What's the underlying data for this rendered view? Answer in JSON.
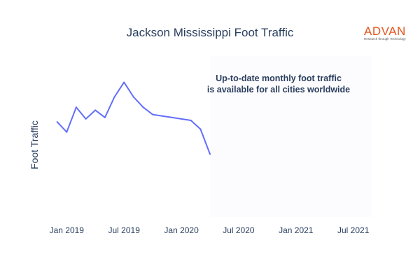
{
  "chart_data": {
    "type": "line",
    "title": "Jackson Mississippi Foot Traffic",
    "xlabel": "",
    "ylabel": "Foot Traffic",
    "x_ticks": [
      "Jan 2019",
      "Jul 2019",
      "Jan 2020",
      "Jul 2020",
      "Jan 2021",
      "Jul 2021"
    ],
    "x_range": [
      "2018-11",
      "2021-09"
    ],
    "grid": false,
    "legend": "none",
    "series": [
      {
        "color": "#636efa",
        "x": [
          "2018-12",
          "2019-01",
          "2019-02",
          "2019-03",
          "2019-04",
          "2019-05",
          "2019-06",
          "2019-07",
          "2019-08",
          "2019-09",
          "2019-10",
          "2019-11",
          "2019-12",
          "2020-01",
          "2020-02",
          "2020-03",
          "2020-04"
        ],
        "y": [
          195,
          202,
          185,
          193,
          187,
          192,
          178,
          168,
          178,
          185,
          190,
          191,
          192,
          193,
          194,
          200,
          217
        ]
      }
    ],
    "shaded_region": {
      "x_from": "2020-04",
      "x_to": "2021-09",
      "color": "#fcfbfd"
    },
    "annotation": [
      "Up-to-date monthly foot traffic",
      "is available for all cities worldwide"
    ]
  },
  "logo": {
    "name": "ADVAN",
    "tagline": "Research through Technology",
    "color": "#e2551f"
  }
}
